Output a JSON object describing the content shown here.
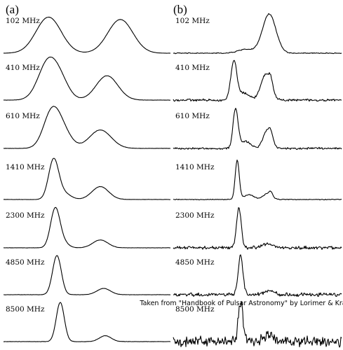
{
  "chart_data": {
    "type": "line",
    "title": "",
    "credit": "Taken from \"Handbook of Pulsar Astronomy\" by Lorimer & Kramer",
    "grid": false,
    "legend": "none",
    "xlim": [
      0,
      1
    ],
    "panels": [
      {
        "label": "(a)",
        "frequencies": [
          "102 MHz",
          "410 MHz",
          "610 MHz",
          "1410 MHz",
          "2300 MHz",
          "4850 MHz",
          "8500 MHz"
        ],
        "series": [
          {
            "frequency": "102 MHz",
            "noise": 0.003,
            "components": [
              {
                "center": 0.27,
                "width": 0.075,
                "amp": 0.92
              },
              {
                "center": 0.7,
                "width": 0.075,
                "amp": 0.86
              }
            ]
          },
          {
            "frequency": "410 MHz",
            "noise": 0.004,
            "components": [
              {
                "center": 0.27,
                "width": 0.06,
                "amp": 1.0
              },
              {
                "center": 0.35,
                "width": 0.05,
                "amp": 0.3
              },
              {
                "center": 0.62,
                "width": 0.065,
                "amp": 0.62
              }
            ]
          },
          {
            "frequency": "610 MHz",
            "noise": 0.004,
            "components": [
              {
                "center": 0.29,
                "width": 0.05,
                "amp": 0.92
              },
              {
                "center": 0.36,
                "width": 0.05,
                "amp": 0.35
              },
              {
                "center": 0.58,
                "width": 0.065,
                "amp": 0.47
              }
            ]
          },
          {
            "frequency": "1410 MHz",
            "noise": 0.004,
            "components": [
              {
                "center": 0.3,
                "width": 0.03,
                "amp": 1.0
              },
              {
                "center": 0.36,
                "width": 0.04,
                "amp": 0.16
              },
              {
                "center": 0.58,
                "width": 0.05,
                "amp": 0.33
              }
            ]
          },
          {
            "frequency": "2300 MHz",
            "noise": 0.004,
            "components": [
              {
                "center": 0.31,
                "width": 0.028,
                "amp": 1.0
              },
              {
                "center": 0.36,
                "width": 0.03,
                "amp": 0.12
              },
              {
                "center": 0.58,
                "width": 0.045,
                "amp": 0.2
              }
            ]
          },
          {
            "frequency": "4850 MHz",
            "noise": 0.004,
            "components": [
              {
                "center": 0.32,
                "width": 0.026,
                "amp": 1.0
              },
              {
                "center": 0.6,
                "width": 0.04,
                "amp": 0.16
              }
            ]
          },
          {
            "frequency": "8500 MHz",
            "noise": 0.005,
            "components": [
              {
                "center": 0.34,
                "width": 0.024,
                "amp": 1.0
              },
              {
                "center": 0.61,
                "width": 0.035,
                "amp": 0.15
              }
            ]
          }
        ]
      },
      {
        "label": "(b)",
        "frequencies": [
          "102 MHz",
          "410 MHz",
          "610 MHz",
          "1410 MHz",
          "2300 MHz",
          "4850 MHz",
          "8500 MHz"
        ],
        "series": [
          {
            "frequency": "102 MHz",
            "noise": 0.015,
            "components": [
              {
                "center": 0.43,
                "width": 0.045,
                "amp": 0.1
              },
              {
                "center": 0.57,
                "width": 0.04,
                "amp": 1.0
              }
            ]
          },
          {
            "frequency": "410 MHz",
            "noise": 0.035,
            "components": [
              {
                "center": 0.36,
                "width": 0.018,
                "amp": 1.0
              },
              {
                "center": 0.42,
                "width": 0.03,
                "amp": 0.18
              },
              {
                "center": 0.55,
                "width": 0.03,
                "amp": 0.65
              },
              {
                "center": 0.58,
                "width": 0.012,
                "amp": 0.22
              }
            ]
          },
          {
            "frequency": "610 MHz",
            "noise": 0.03,
            "components": [
              {
                "center": 0.37,
                "width": 0.015,
                "amp": 1.0
              },
              {
                "center": 0.43,
                "width": 0.03,
                "amp": 0.18
              },
              {
                "center": 0.56,
                "width": 0.025,
                "amp": 0.48
              },
              {
                "center": 0.58,
                "width": 0.01,
                "amp": 0.15
              }
            ]
          },
          {
            "frequency": "1410 MHz",
            "noise": 0.012,
            "components": [
              {
                "center": 0.38,
                "width": 0.012,
                "amp": 1.0
              },
              {
                "center": 0.45,
                "width": 0.03,
                "amp": 0.12
              },
              {
                "center": 0.56,
                "width": 0.025,
                "amp": 0.15
              },
              {
                "center": 0.58,
                "width": 0.01,
                "amp": 0.1
              }
            ]
          },
          {
            "frequency": "2300 MHz",
            "noise": 0.05,
            "components": [
              {
                "center": 0.39,
                "width": 0.014,
                "amp": 1.0
              },
              {
                "center": 0.56,
                "width": 0.03,
                "amp": 0.1
              }
            ]
          },
          {
            "frequency": "4850 MHz",
            "noise": 0.055,
            "components": [
              {
                "center": 0.4,
                "width": 0.014,
                "amp": 1.0
              },
              {
                "center": 0.57,
                "width": 0.03,
                "amp": 0.1
              }
            ]
          },
          {
            "frequency": "8500 MHz",
            "noise": 0.16,
            "components": [
              {
                "center": 0.4,
                "width": 0.014,
                "amp": 1.0
              },
              {
                "center": 0.57,
                "width": 0.03,
                "amp": 0.15
              }
            ]
          }
        ]
      }
    ]
  }
}
